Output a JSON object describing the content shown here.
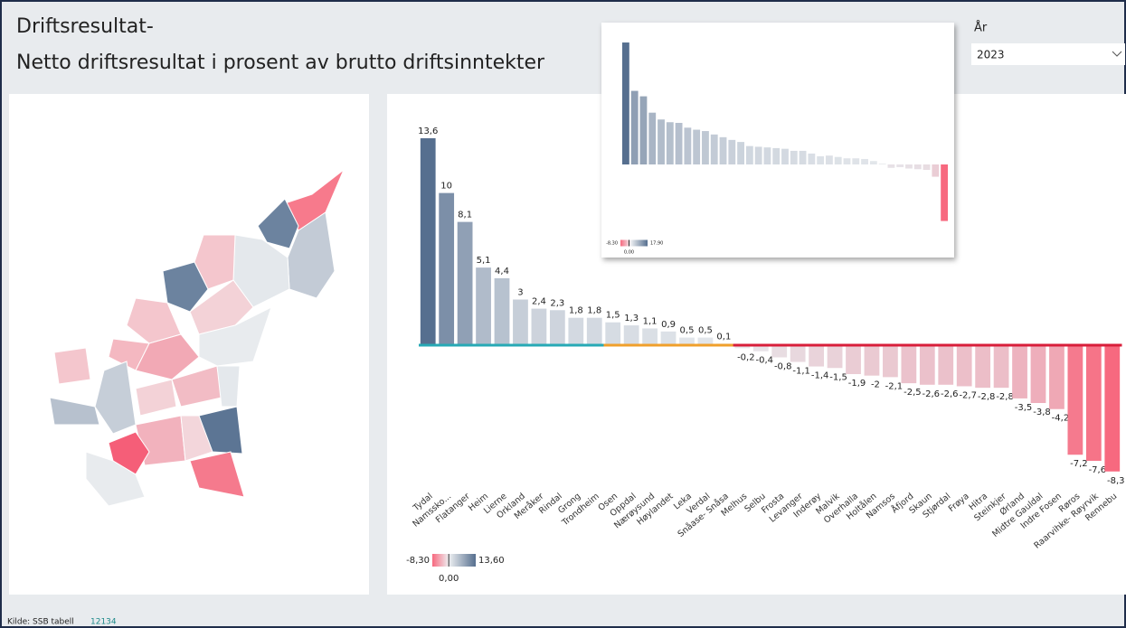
{
  "header": {
    "title": "Driftsresultat-",
    "subtitle": "Netto driftsresultat i prosent av brutto driftsinntekter"
  },
  "filter": {
    "label": "År",
    "value": "2023"
  },
  "chart_data": [
    {
      "type": "bar",
      "categories": [
        "Tydal",
        "Namssko...",
        "Flatanger",
        "Heim",
        "Lierne",
        "Orkland",
        "Meråker",
        "Rindal",
        "Grong",
        "Trondheim",
        "Osen",
        "Oppdal",
        "Nærøysund",
        "Høylandet",
        "Leka",
        "Verdal",
        "Snåase- Snåsa",
        "Melhus",
        "Selbu",
        "Frosta",
        "Levanger",
        "Inderøy",
        "Malvik",
        "Overhalla",
        "Holtålen",
        "Namsos",
        "Åfjord",
        "Skaun",
        "Stjørdal",
        "Frøya",
        "Hitra",
        "Steinkjer",
        "Ørland",
        "Midtre Gauldal",
        "Indre Fosen",
        "Røros",
        "Raarvihke- Røyrvik",
        "Rennebu"
      ],
      "values": [
        13.6,
        10,
        8.1,
        5.1,
        4.4,
        3,
        2.4,
        2.3,
        1.8,
        1.8,
        1.5,
        1.3,
        1.1,
        0.9,
        0.5,
        0.5,
        0.1,
        -0.2,
        -0.4,
        -0.8,
        -1.1,
        -1.4,
        -1.5,
        -1.9,
        -2,
        -2.1,
        -2.5,
        -2.6,
        -2.6,
        -2.7,
        -2.8,
        -2.8,
        -3.5,
        -3.8,
        -4.2,
        -7.2,
        -7.6,
        -8.3
      ],
      "value_labels": [
        "13,6",
        "10",
        "8,1",
        "5,1",
        "4,4",
        "3",
        "2,4",
        "2,3",
        "1,8",
        "1,8",
        "1,5",
        "1,3",
        "1,1",
        "0,9",
        "0,5",
        "0,5",
        "0,1",
        "-0,2",
        "-0,4",
        "-0,8",
        "-1,1",
        "-1,4",
        "-1,5",
        "-1,9",
        "-2",
        "-2,1",
        "-2,5",
        "-2,6",
        "-2,6",
        "-2,7",
        "-2,8",
        "-2,8",
        "-3,5",
        "-3,8",
        "-4,2",
        "-7,2",
        "-7,6",
        "-8,3"
      ],
      "positive_color": "#566f8f",
      "negative_color": "#f7697f",
      "neutral_color": "#e6e9ed",
      "baseline_colors": [
        "#27a9b5",
        "#27a9b5",
        "#27a9b5",
        "#27a9b5",
        "#27a9b5",
        "#27a9b5",
        "#27a9b5",
        "#27a9b5",
        "#27a9b5",
        "#27a9b5",
        "#f0a02c",
        "#f0a02c",
        "#f0a02c",
        "#f0a02c",
        "#f0a02c",
        "#f0a02c",
        "#f0a02c",
        "#d81e3a",
        "#d81e3a",
        "#d81e3a",
        "#d81e3a",
        "#d81e3a",
        "#d81e3a",
        "#d81e3a",
        "#d81e3a",
        "#d81e3a",
        "#d81e3a",
        "#d81e3a",
        "#d81e3a",
        "#d81e3a",
        "#d81e3a",
        "#d81e3a",
        "#d81e3a",
        "#d81e3a",
        "#d81e3a",
        "#d81e3a",
        "#d81e3a",
        "#d81e3a"
      ],
      "legend": {
        "min": -8.3,
        "min_label": "-8,30",
        "mid": 0,
        "mid_label": "0,00",
        "max": 13.6,
        "max_label": "13,60"
      }
    },
    {
      "type": "bar",
      "values": [
        17.9,
        10.8,
        10,
        7.6,
        6.6,
        6.2,
        6.1,
        5.4,
        5.1,
        4.9,
        4.4,
        4,
        3.6,
        3.3,
        2.7,
        2.6,
        2.5,
        2.4,
        2.3,
        2,
        2,
        1.6,
        1.2,
        1.3,
        1.1,
        0.9,
        0.9,
        0.8,
        0.5,
        0.1,
        -0.5,
        -0.4,
        -0.6,
        -0.7,
        -0.8,
        -1.8,
        -8.3
      ],
      "positive_color": "#566f8f",
      "negative_color": "#f7697f",
      "neutral_color": "#e6e9ed",
      "legend": {
        "min": -8.3,
        "min_label": "-8,30",
        "mid": 0,
        "mid_label": "0,00",
        "max": 17.9,
        "max_label": "17,90"
      }
    }
  ],
  "source": {
    "label": "Kilde: SSB tabell",
    "link": "12134"
  }
}
